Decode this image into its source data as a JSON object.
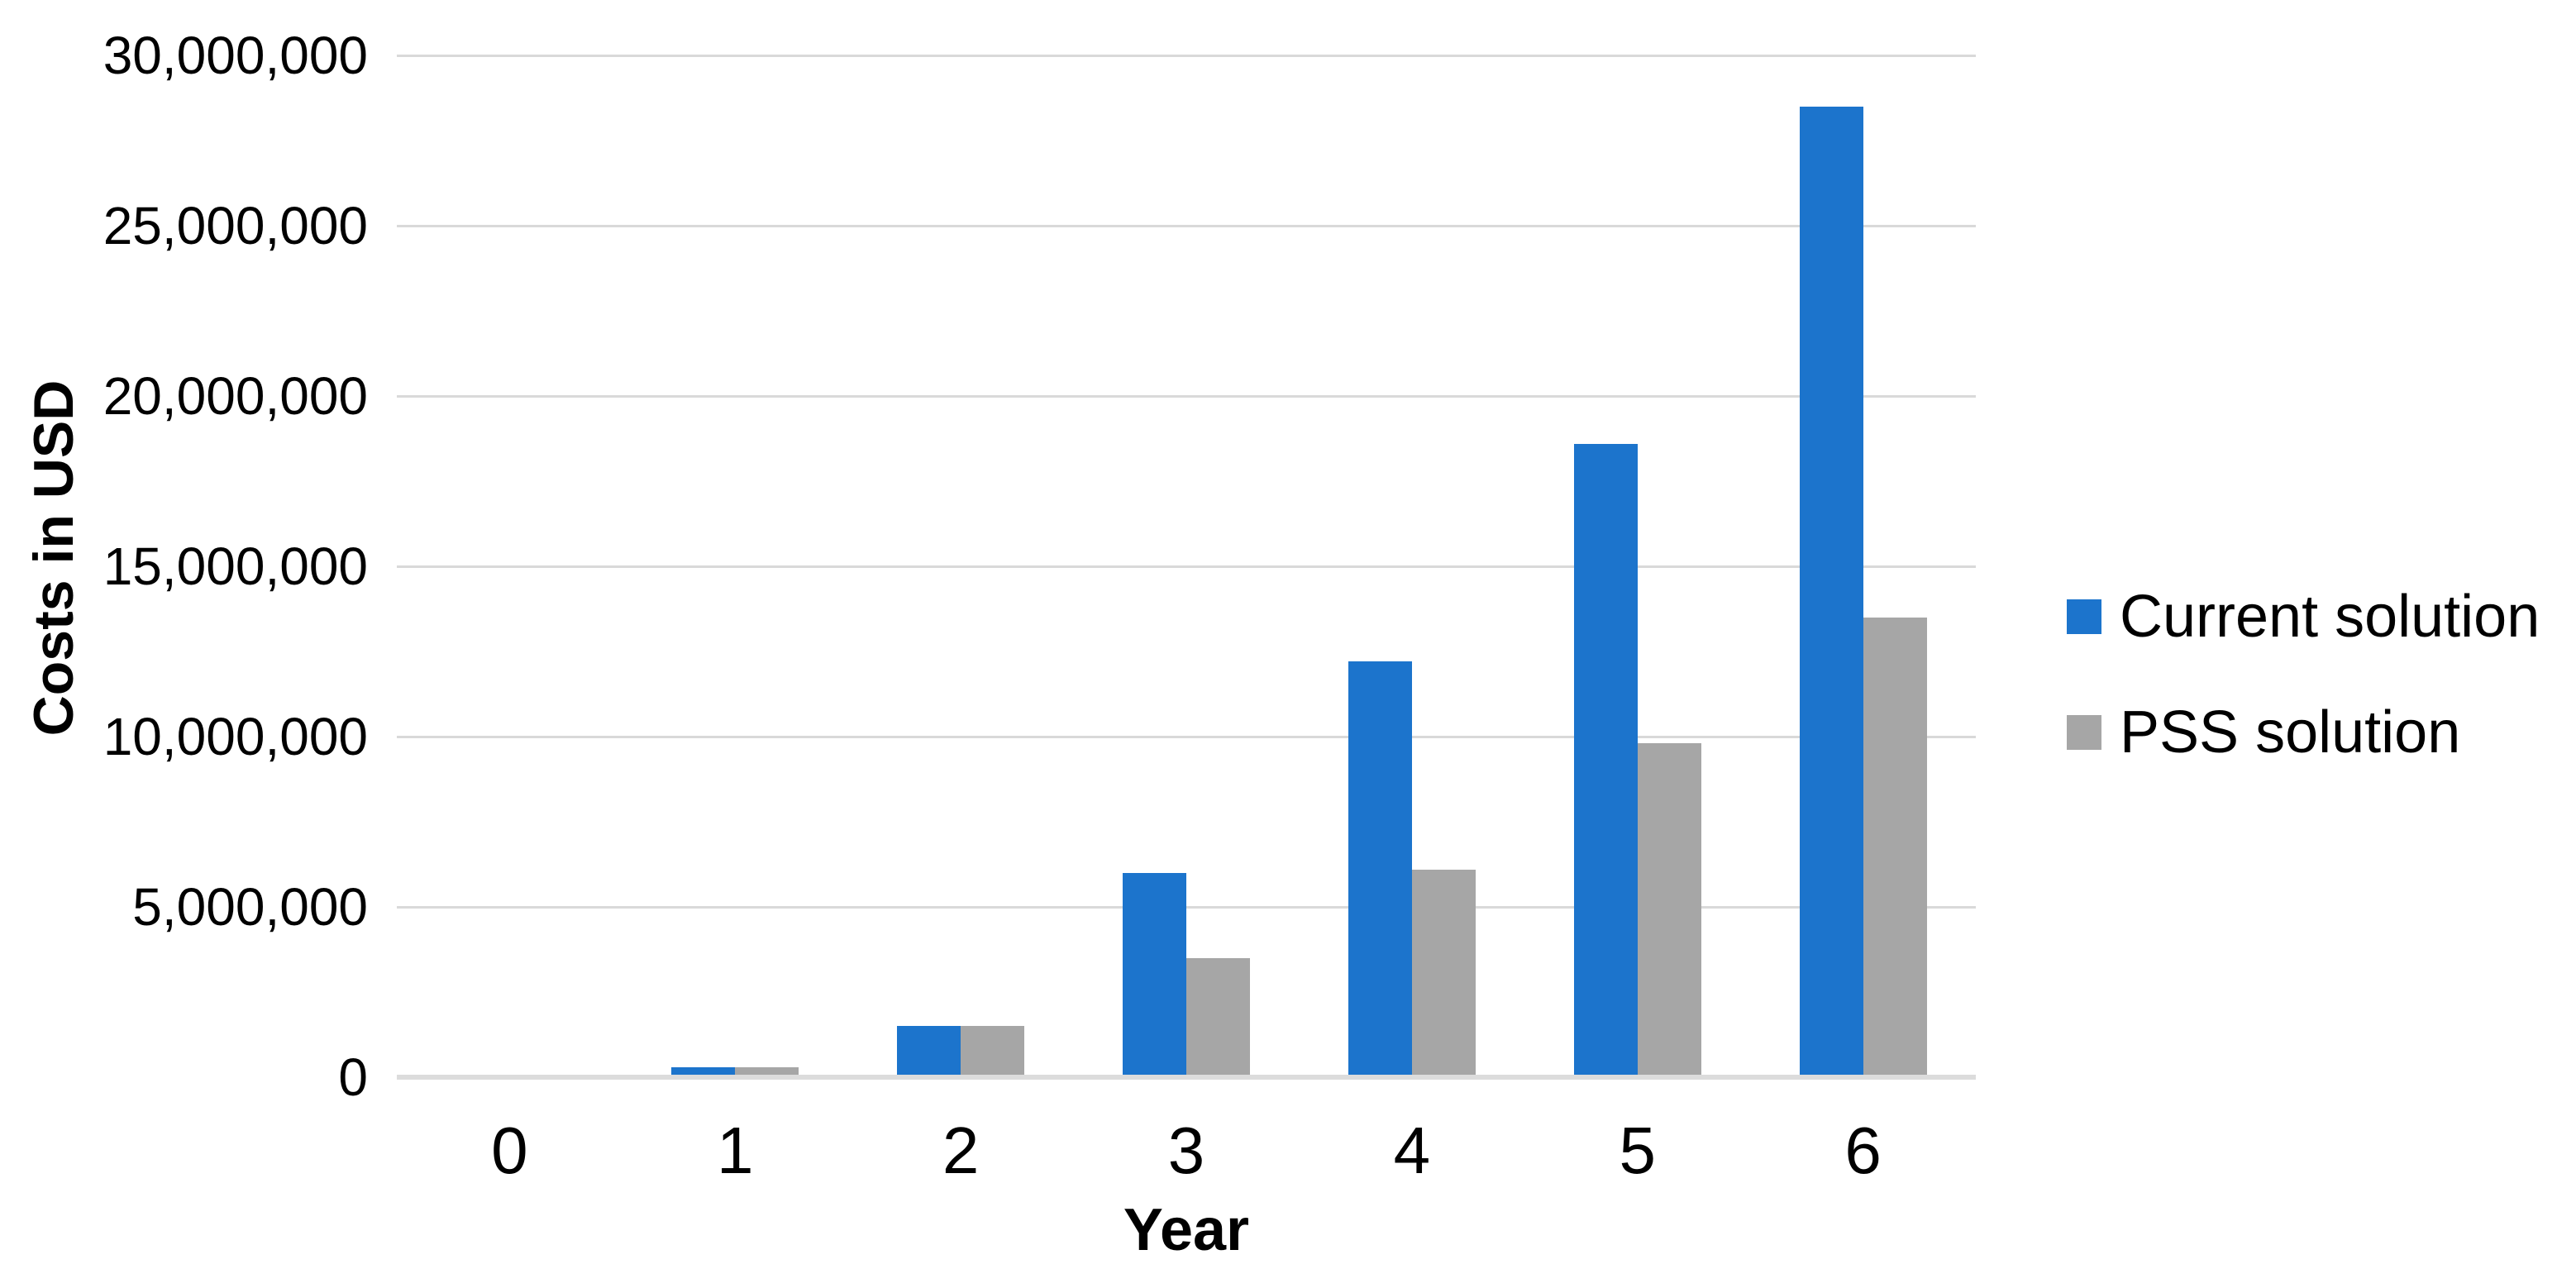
{
  "chart_data": {
    "type": "bar",
    "title": "",
    "xlabel": "Year",
    "ylabel": "Costs in USD",
    "categories": [
      "0",
      "1",
      "2",
      "3",
      "4",
      "5",
      "6"
    ],
    "series": [
      {
        "name": "Current solution",
        "color": "#1c74cc",
        "values": [
          0,
          300000,
          1500000,
          6000000,
          12200000,
          18600000,
          28500000
        ]
      },
      {
        "name": "PSS solution",
        "color": "#a6a6a6",
        "values": [
          0,
          300000,
          1500000,
          3500000,
          6100000,
          9800000,
          13500000
        ]
      }
    ],
    "ylim": [
      0,
      30000000
    ],
    "y_tick_interval": 5000000,
    "y_ticks": [
      {
        "value": 0,
        "label": "0"
      },
      {
        "value": 5000000,
        "label": "5,000,000"
      },
      {
        "value": 10000000,
        "label": "10,000,000"
      },
      {
        "value": 15000000,
        "label": "15,000,000"
      },
      {
        "value": 20000000,
        "label": "20,000,000"
      },
      {
        "value": 25000000,
        "label": "25,000,000"
      },
      {
        "value": 30000000,
        "label": "30,000,000"
      }
    ],
    "grid": true,
    "legend_position": "right"
  },
  "colors": {
    "background": "#ffffff",
    "gridline": "#d9d9d9",
    "axis_line": "#dcdcdc",
    "text": "#000000"
  }
}
